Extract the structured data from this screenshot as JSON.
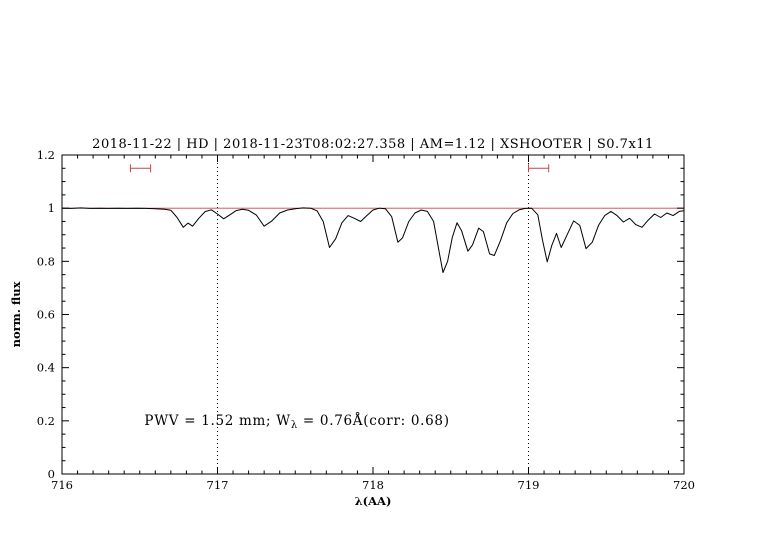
{
  "chart_data": {
    "type": "line",
    "title": "2018-11-22 | HD | 2018-11-23T08:02:27.358 | AM=1.12 | XSHOOTER | S0.7x11",
    "title_color": "#0000cc",
    "xlabel": "λ(AA)",
    "ylabel": "norm. flux",
    "xlim": [
      716,
      720
    ],
    "ylim": [
      0,
      1.2
    ],
    "xticks": [
      716,
      717,
      718,
      719,
      720
    ],
    "xtick_labels": [
      "716",
      "717",
      "718",
      "719",
      "720"
    ],
    "yticks": [
      0,
      0.2,
      0.4,
      0.6,
      0.8,
      1,
      1.2
    ],
    "ytick_labels": [
      "0",
      "0.2",
      "0.4",
      "0.6",
      "0.8",
      "1",
      "1.2"
    ],
    "grid": false,
    "legend": null,
    "vlines": {
      "x": [
        717,
        719
      ],
      "style": "dotted",
      "color": "#000000"
    },
    "continuum": {
      "y": 1.0,
      "color": "#cc4444"
    },
    "range_markers": [
      {
        "x1": 716.44,
        "x2": 716.57,
        "y": 1.15,
        "color": "#cc4444"
      },
      {
        "x1": 719.0,
        "x2": 719.13,
        "y": 1.15,
        "color": "#cc4444"
      }
    ],
    "annotation": {
      "prefix": "PWV = 1.52 mm; W",
      "sub": "λ",
      "suffix": " = 0.76Å(corr: 0.68)",
      "x": 716.53,
      "y": 0.185,
      "color": "#0000cc"
    },
    "series": [
      {
        "name": "spectrum",
        "color": "#000000",
        "points": [
          [
            716.0,
            1.0
          ],
          [
            716.06,
            0.999
          ],
          [
            716.12,
            1.001
          ],
          [
            716.18,
            0.999
          ],
          [
            716.24,
            1.0
          ],
          [
            716.3,
            0.999
          ],
          [
            716.36,
            1.0
          ],
          [
            716.42,
            0.999
          ],
          [
            716.48,
            1.0
          ],
          [
            716.54,
            0.999
          ],
          [
            716.6,
            0.998
          ],
          [
            716.66,
            0.996
          ],
          [
            716.7,
            0.992
          ],
          [
            716.74,
            0.965
          ],
          [
            716.78,
            0.928
          ],
          [
            716.81,
            0.944
          ],
          [
            716.84,
            0.932
          ],
          [
            716.88,
            0.962
          ],
          [
            716.92,
            0.987
          ],
          [
            716.96,
            0.994
          ],
          [
            717.0,
            0.978
          ],
          [
            717.04,
            0.96
          ],
          [
            717.08,
            0.975
          ],
          [
            717.12,
            0.991
          ],
          [
            717.16,
            0.996
          ],
          [
            717.2,
            0.992
          ],
          [
            717.25,
            0.974
          ],
          [
            717.3,
            0.932
          ],
          [
            717.35,
            0.952
          ],
          [
            717.4,
            0.982
          ],
          [
            717.45,
            0.993
          ],
          [
            717.5,
            0.998
          ],
          [
            717.55,
            1.001
          ],
          [
            717.6,
            1.0
          ],
          [
            717.64,
            0.99
          ],
          [
            717.68,
            0.95
          ],
          [
            717.72,
            0.852
          ],
          [
            717.76,
            0.885
          ],
          [
            717.8,
            0.945
          ],
          [
            717.84,
            0.972
          ],
          [
            717.88,
            0.962
          ],
          [
            717.92,
            0.95
          ],
          [
            717.96,
            0.972
          ],
          [
            718.0,
            0.993
          ],
          [
            718.04,
            1.0
          ],
          [
            718.08,
            0.998
          ],
          [
            718.12,
            0.968
          ],
          [
            718.16,
            0.872
          ],
          [
            718.19,
            0.888
          ],
          [
            718.23,
            0.95
          ],
          [
            718.27,
            0.982
          ],
          [
            718.31,
            0.993
          ],
          [
            718.35,
            0.988
          ],
          [
            718.39,
            0.95
          ],
          [
            718.43,
            0.82
          ],
          [
            718.45,
            0.758
          ],
          [
            718.48,
            0.8
          ],
          [
            718.51,
            0.89
          ],
          [
            718.54,
            0.945
          ],
          [
            718.57,
            0.915
          ],
          [
            718.61,
            0.838
          ],
          [
            718.64,
            0.862
          ],
          [
            718.68,
            0.925
          ],
          [
            718.71,
            0.912
          ],
          [
            718.75,
            0.828
          ],
          [
            718.78,
            0.822
          ],
          [
            718.82,
            0.878
          ],
          [
            718.86,
            0.945
          ],
          [
            718.9,
            0.98
          ],
          [
            718.94,
            0.994
          ],
          [
            718.98,
            0.999
          ],
          [
            719.02,
            1.0
          ],
          [
            719.06,
            0.975
          ],
          [
            719.09,
            0.88
          ],
          [
            719.12,
            0.798
          ],
          [
            719.15,
            0.86
          ],
          [
            719.18,
            0.905
          ],
          [
            719.21,
            0.852
          ],
          [
            719.25,
            0.902
          ],
          [
            719.29,
            0.952
          ],
          [
            719.33,
            0.935
          ],
          [
            719.37,
            0.848
          ],
          [
            719.41,
            0.872
          ],
          [
            719.45,
            0.935
          ],
          [
            719.49,
            0.972
          ],
          [
            719.53,
            0.988
          ],
          [
            719.57,
            0.972
          ],
          [
            719.61,
            0.948
          ],
          [
            719.65,
            0.962
          ],
          [
            719.69,
            0.938
          ],
          [
            719.73,
            0.928
          ],
          [
            719.77,
            0.955
          ],
          [
            719.81,
            0.978
          ],
          [
            719.85,
            0.965
          ],
          [
            719.89,
            0.982
          ],
          [
            719.93,
            0.972
          ],
          [
            719.97,
            0.988
          ],
          [
            720.0,
            0.99
          ]
        ]
      }
    ]
  }
}
